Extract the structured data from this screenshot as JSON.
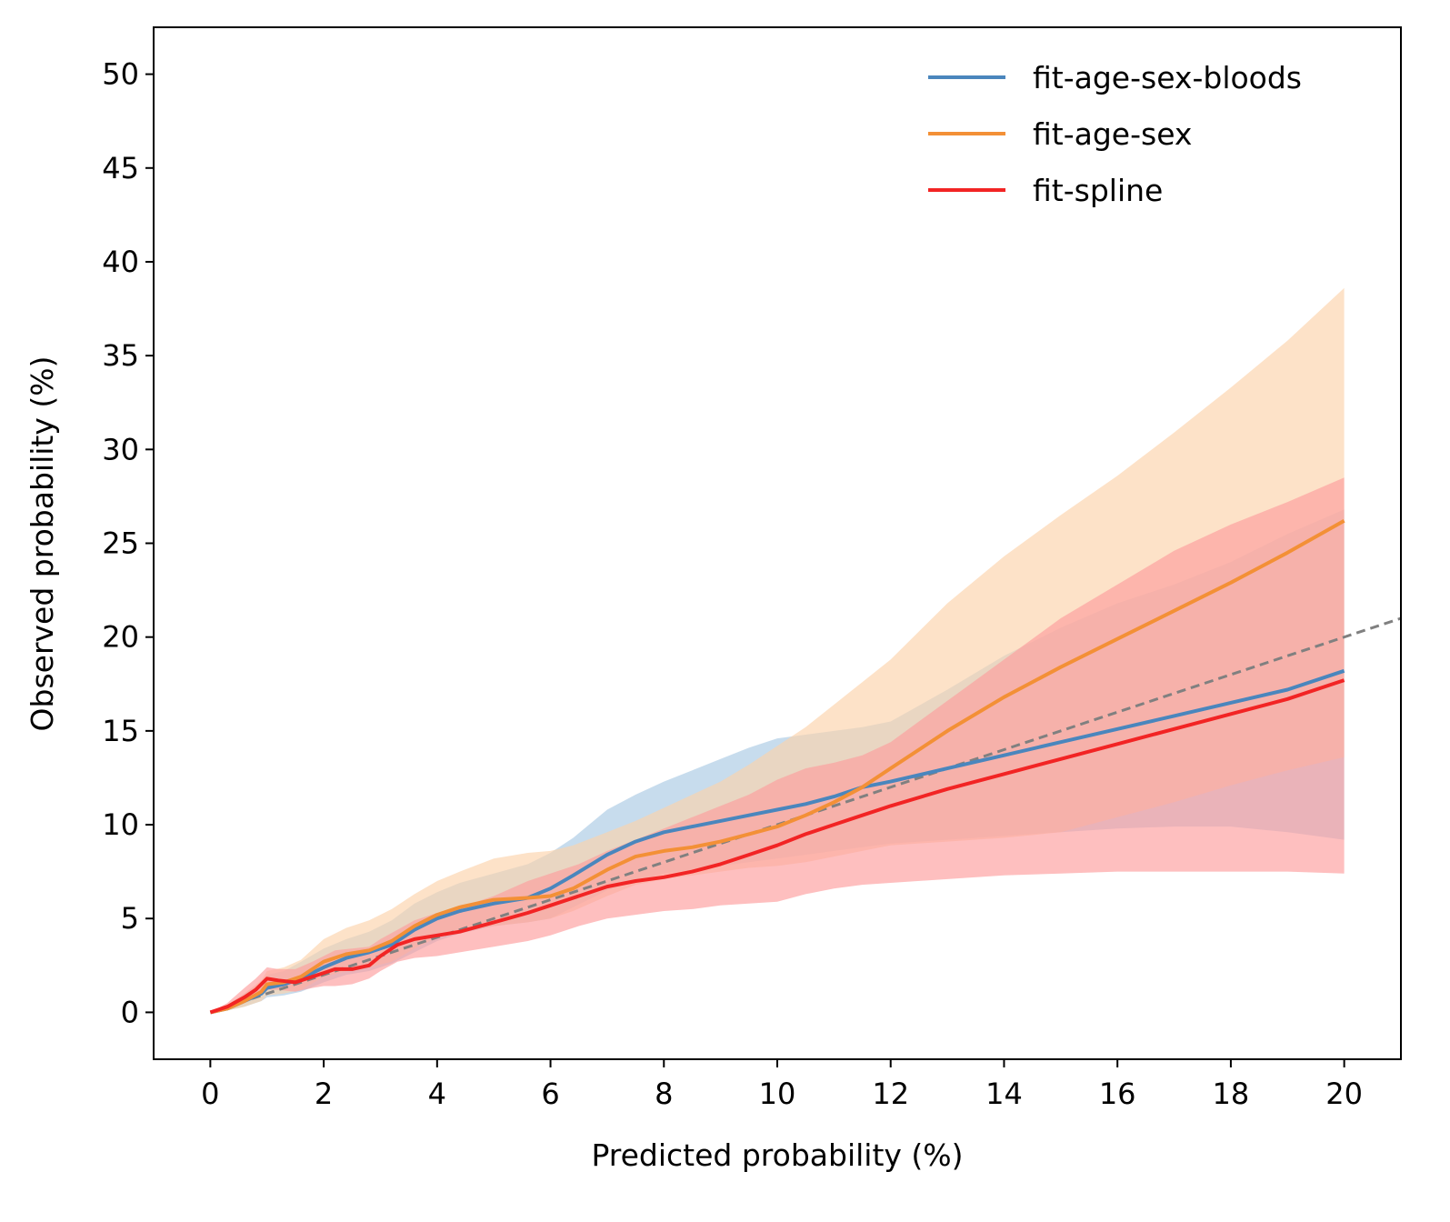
{
  "chart_data": {
    "type": "line",
    "xlabel": "Predicted probability (%)",
    "ylabel": "Observed probability (%)",
    "xlim": [
      -1,
      21
    ],
    "ylim": [
      -2.5,
      52.5
    ],
    "xticks": [
      0,
      2,
      4,
      6,
      8,
      10,
      12,
      14,
      16,
      18,
      20
    ],
    "yticks": [
      0,
      5,
      10,
      15,
      20,
      25,
      30,
      35,
      40,
      45,
      50
    ],
    "grid": false,
    "legend_position": "top-right",
    "reference_line": {
      "style": "dashed",
      "color": "#808080",
      "x": [
        0,
        21
      ],
      "y": [
        0,
        21
      ]
    },
    "series": [
      {
        "name": "fit-age-sex-bloods",
        "color": "#4a86bd",
        "band_color": "#a9c9e4",
        "x": [
          0,
          0.3,
          0.6,
          0.9,
          1.0,
          1.3,
          1.6,
          2.0,
          2.4,
          2.8,
          3.2,
          3.6,
          4.0,
          4.4,
          5.0,
          5.6,
          6.0,
          6.4,
          7.0,
          7.5,
          8.0,
          8.5,
          9.0,
          9.5,
          10.0,
          10.5,
          11.0,
          11.5,
          12.0,
          13.0,
          14.0,
          15.0,
          16.0,
          17.0,
          18.0,
          19.0,
          20.0
        ],
        "y": [
          0,
          0.2,
          0.6,
          1.0,
          1.3,
          1.5,
          1.8,
          2.4,
          2.9,
          3.2,
          3.6,
          4.4,
          5.0,
          5.4,
          5.8,
          6.1,
          6.6,
          7.3,
          8.4,
          9.1,
          9.6,
          9.9,
          10.2,
          10.5,
          10.8,
          11.1,
          11.5,
          12.0,
          12.3,
          13.0,
          13.7,
          14.4,
          15.1,
          15.8,
          16.5,
          17.2,
          18.2
        ],
        "lower": [
          0,
          0.1,
          0.3,
          0.6,
          0.8,
          0.9,
          1.1,
          1.6,
          2.0,
          2.2,
          2.6,
          3.2,
          3.8,
          4.2,
          4.6,
          4.8,
          5.0,
          5.6,
          6.5,
          7.0,
          7.4,
          7.6,
          7.8,
          8.0,
          8.2,
          8.4,
          8.6,
          8.8,
          9.0,
          9.2,
          9.4,
          9.6,
          9.8,
          9.9,
          9.9,
          9.6,
          9.2
        ],
        "upper": [
          0,
          0.4,
          1.0,
          1.6,
          2.0,
          2.2,
          2.7,
          3.4,
          3.9,
          4.3,
          4.9,
          5.8,
          6.4,
          6.9,
          7.4,
          7.9,
          8.5,
          9.3,
          10.8,
          11.6,
          12.3,
          12.9,
          13.5,
          14.1,
          14.6,
          14.8,
          15.0,
          15.2,
          15.5,
          17.2,
          19.0,
          20.5,
          21.8,
          22.8,
          24.0,
          25.5,
          26.8
        ]
      },
      {
        "name": "fit-age-sex",
        "color": "#f39036",
        "band_color": "#fcd2ab",
        "x": [
          0,
          0.3,
          0.6,
          0.9,
          1.0,
          1.3,
          1.6,
          2.0,
          2.4,
          2.8,
          3.2,
          3.6,
          4.0,
          4.4,
          5.0,
          5.6,
          6.0,
          6.4,
          7.0,
          7.5,
          8.0,
          8.5,
          9.0,
          9.5,
          10.0,
          10.5,
          11.0,
          11.5,
          12.0,
          13.0,
          14.0,
          15.0,
          16.0,
          17.0,
          18.0,
          19.0,
          20.0
        ],
        "y": [
          0,
          0.2,
          0.6,
          1.1,
          1.5,
          1.6,
          1.9,
          2.7,
          3.1,
          3.3,
          3.8,
          4.6,
          5.2,
          5.6,
          6.0,
          6.1,
          6.2,
          6.6,
          7.6,
          8.3,
          8.6,
          8.8,
          9.1,
          9.5,
          9.9,
          10.5,
          11.2,
          12.0,
          13.0,
          15.0,
          16.8,
          18.4,
          19.9,
          21.4,
          22.9,
          24.5,
          26.2
        ],
        "lower": [
          0,
          0.1,
          0.3,
          0.6,
          0.9,
          1.0,
          1.2,
          1.9,
          2.2,
          2.4,
          2.7,
          3.4,
          4.0,
          4.3,
          4.6,
          4.8,
          5.0,
          5.4,
          6.2,
          6.8,
          7.1,
          7.3,
          7.5,
          7.7,
          7.8,
          8.0,
          8.3,
          8.6,
          8.9,
          9.1,
          9.3,
          9.6,
          10.4,
          11.2,
          12.1,
          12.9,
          13.6
        ],
        "upper": [
          0,
          0.4,
          1.0,
          1.7,
          2.2,
          2.4,
          2.8,
          3.9,
          4.5,
          4.9,
          5.5,
          6.3,
          7.0,
          7.5,
          8.2,
          8.5,
          8.6,
          8.9,
          9.6,
          10.2,
          10.9,
          11.6,
          12.3,
          13.2,
          14.2,
          15.2,
          16.4,
          17.6,
          18.8,
          21.8,
          24.3,
          26.5,
          28.6,
          30.9,
          33.3,
          35.8,
          38.6
        ]
      },
      {
        "name": "fit-spline",
        "color": "#f22424",
        "band_color": "#fe9d9d",
        "x": [
          0,
          0.3,
          0.6,
          0.8,
          1.0,
          1.2,
          1.5,
          1.8,
          2.0,
          2.2,
          2.5,
          2.8,
          3.0,
          3.3,
          3.6,
          4.0,
          4.4,
          5.0,
          5.6,
          6.0,
          6.5,
          7.0,
          7.5,
          8.0,
          8.5,
          9.0,
          9.5,
          10.0,
          10.5,
          11.0,
          11.5,
          12.0,
          13.0,
          14.0,
          15.0,
          16.0,
          17.0,
          18.0,
          19.0,
          20.0
        ],
        "y": [
          0,
          0.3,
          0.8,
          1.2,
          1.8,
          1.7,
          1.6,
          1.9,
          2.1,
          2.3,
          2.3,
          2.5,
          3.0,
          3.6,
          3.9,
          4.1,
          4.3,
          4.8,
          5.3,
          5.7,
          6.2,
          6.7,
          7.0,
          7.2,
          7.5,
          7.9,
          8.4,
          8.9,
          9.5,
          10.0,
          10.5,
          11.0,
          11.9,
          12.7,
          13.5,
          14.3,
          15.1,
          15.9,
          16.7,
          17.7
        ],
        "lower": [
          0,
          0.2,
          0.6,
          0.9,
          1.2,
          1.2,
          1.1,
          1.3,
          1.4,
          1.4,
          1.5,
          1.8,
          2.2,
          2.7,
          2.9,
          3.0,
          3.2,
          3.5,
          3.8,
          4.1,
          4.6,
          5.0,
          5.2,
          5.4,
          5.5,
          5.7,
          5.8,
          5.9,
          6.3,
          6.6,
          6.8,
          6.9,
          7.1,
          7.3,
          7.4,
          7.5,
          7.5,
          7.5,
          7.5,
          7.4
        ],
        "upper": [
          0,
          0.5,
          1.3,
          1.8,
          2.4,
          2.3,
          2.3,
          2.7,
          3.0,
          3.3,
          3.4,
          3.5,
          3.9,
          4.4,
          4.9,
          5.3,
          5.6,
          6.2,
          7.0,
          7.4,
          7.9,
          8.6,
          9.2,
          9.8,
          10.4,
          11.0,
          11.6,
          12.4,
          13.0,
          13.3,
          13.7,
          14.4,
          16.6,
          18.8,
          21.0,
          22.8,
          24.6,
          26.0,
          27.2,
          28.5
        ]
      }
    ]
  }
}
